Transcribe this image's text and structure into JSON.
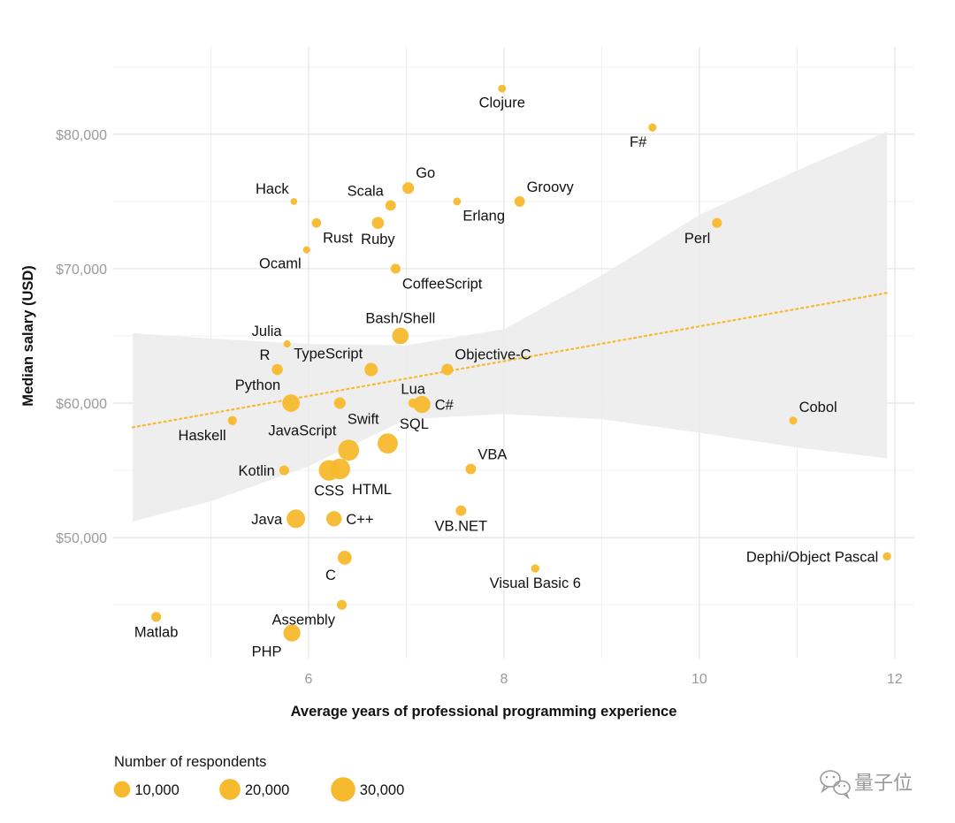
{
  "chart_data": {
    "type": "scatter",
    "title": "",
    "xlabel": "Average years of professional programming experience",
    "ylabel": "Median salary (USD)",
    "xlim": [
      4.0,
      12.2
    ],
    "ylim": [
      41000,
      86500
    ],
    "x_ticks": [
      {
        "value": 6,
        "label": "6"
      },
      {
        "value": 8,
        "label": "8"
      },
      {
        "value": 10,
        "label": "10"
      },
      {
        "value": 12,
        "label": "12"
      }
    ],
    "y_ticks": [
      {
        "value": 50000,
        "label": "$50,000"
      },
      {
        "value": 60000,
        "label": "$60,000"
      },
      {
        "value": 70000,
        "label": "$70,000"
      },
      {
        "value": 80000,
        "label": "$80,000"
      }
    ],
    "grid": true,
    "colors": {
      "point": "#f7b92d",
      "trend": "#f7b92d",
      "band": "#ebebeb",
      "grid": "#e4e4e4",
      "watermark": "#9a9a9a"
    },
    "trend_line": {
      "x": [
        4.2,
        11.92
      ],
      "y": [
        58200,
        68200
      ]
    },
    "confidence_band": {
      "upper": [
        [
          4.2,
          65200
        ],
        [
          5.0,
          64800
        ],
        [
          6.0,
          64400
        ],
        [
          7.0,
          64300
        ],
        [
          8.0,
          65500
        ],
        [
          9.0,
          69500
        ],
        [
          10.0,
          74000
        ],
        [
          11.0,
          77300
        ],
        [
          11.92,
          80200
        ]
      ],
      "lower": [
        [
          11.92,
          55900
        ],
        [
          11.0,
          56700
        ],
        [
          10.0,
          57800
        ],
        [
          9.0,
          58800
        ],
        [
          8.0,
          59200
        ],
        [
          7.0,
          58800
        ],
        [
          6.0,
          55300
        ],
        [
          5.0,
          52700
        ],
        [
          4.2,
          51200
        ]
      ]
    },
    "points": [
      {
        "name": "Clojure",
        "x": 7.98,
        "y": 83400,
        "respondents": 400,
        "label_pos": "below"
      },
      {
        "name": "F#",
        "x": 9.52,
        "y": 80500,
        "respondents": 500,
        "label_pos": "below-left"
      },
      {
        "name": "Go",
        "x": 7.02,
        "y": 76000,
        "respondents": 3000,
        "label_pos": "above-right"
      },
      {
        "name": "Hack",
        "x": 5.85,
        "y": 75000,
        "respondents": 100,
        "label_pos": "above-left"
      },
      {
        "name": "Scala",
        "x": 6.84,
        "y": 74700,
        "respondents": 2000,
        "label_pos": "above-left"
      },
      {
        "name": "Erlang",
        "x": 7.52,
        "y": 75000,
        "respondents": 400,
        "label_pos": "below-right"
      },
      {
        "name": "Groovy",
        "x": 8.16,
        "y": 75000,
        "respondents": 2000,
        "label_pos": "above-right"
      },
      {
        "name": "Rust",
        "x": 6.08,
        "y": 73400,
        "respondents": 1200,
        "label_pos": "below-right"
      },
      {
        "name": "Ruby",
        "x": 6.71,
        "y": 73400,
        "respondents": 3500,
        "label_pos": "below"
      },
      {
        "name": "Perl",
        "x": 10.18,
        "y": 73400,
        "respondents": 1500,
        "label_pos": "below-left"
      },
      {
        "name": "Ocaml",
        "x": 5.98,
        "y": 71400,
        "respondents": 200,
        "label_pos": "below-left"
      },
      {
        "name": "CoffeeScript",
        "x": 6.89,
        "y": 70000,
        "respondents": 1500,
        "label_pos": "below-right"
      },
      {
        "name": "Julia",
        "x": 5.78,
        "y": 64400,
        "respondents": 200,
        "label_pos": "above-left"
      },
      {
        "name": "Bash/Shell",
        "x": 6.94,
        "y": 65000,
        "respondents": 10000,
        "label_pos": "above"
      },
      {
        "name": "R",
        "x": 5.68,
        "y": 62500,
        "respondents": 2500,
        "label_pos": "above-left"
      },
      {
        "name": "TypeScript",
        "x": 6.64,
        "y": 62500,
        "respondents": 5000,
        "label_pos": "above-left"
      },
      {
        "name": "Objective-C",
        "x": 7.42,
        "y": 62500,
        "respondents": 3000,
        "label_pos": "above-right"
      },
      {
        "name": "Python",
        "x": 5.82,
        "y": 60000,
        "respondents": 12000,
        "label_pos": "above-left"
      },
      {
        "name": "Swift",
        "x": 6.32,
        "y": 60000,
        "respondents": 3000,
        "label_pos": "below-right"
      },
      {
        "name": "Lua",
        "x": 7.07,
        "y": 60000,
        "respondents": 1200,
        "label_pos": "above"
      },
      {
        "name": "C#",
        "x": 7.16,
        "y": 59900,
        "respondents": 11000,
        "label_pos": "right"
      },
      {
        "name": "Cobol",
        "x": 10.96,
        "y": 58700,
        "respondents": 500,
        "label_pos": "above-right"
      },
      {
        "name": "Haskell",
        "x": 5.22,
        "y": 58700,
        "respondents": 1000,
        "label_pos": "below-left"
      },
      {
        "name": "SQL",
        "x": 6.81,
        "y": 57000,
        "respondents": 18000,
        "label_pos": "above-right"
      },
      {
        "name": "JavaScript",
        "x": 6.41,
        "y": 56500,
        "respondents": 20000,
        "label_pos": "above-left"
      },
      {
        "name": "HTML",
        "x": 6.32,
        "y": 55100,
        "respondents": 19000,
        "label_pos": "below-right"
      },
      {
        "name": "CSS",
        "x": 6.21,
        "y": 55000,
        "respondents": 19000,
        "label_pos": "below"
      },
      {
        "name": "Kotlin",
        "x": 5.75,
        "y": 55000,
        "respondents": 1500,
        "label_pos": "left"
      },
      {
        "name": "VBA",
        "x": 7.66,
        "y": 55100,
        "respondents": 2000,
        "label_pos": "above-right"
      },
      {
        "name": "VB.NET",
        "x": 7.56,
        "y": 52000,
        "respondents": 2000,
        "label_pos": "below"
      },
      {
        "name": "Java",
        "x": 5.87,
        "y": 51400,
        "respondents": 14000,
        "label_pos": "left"
      },
      {
        "name": "C++",
        "x": 6.26,
        "y": 51400,
        "respondents": 8000,
        "label_pos": "right"
      },
      {
        "name": "C",
        "x": 6.37,
        "y": 48500,
        "respondents": 6000,
        "label_pos": "below-left"
      },
      {
        "name": "Visual Basic 6",
        "x": 8.32,
        "y": 47700,
        "respondents": 600,
        "label_pos": "below"
      },
      {
        "name": "Dephi/Object Pascal",
        "x": 11.92,
        "y": 48600,
        "respondents": 600,
        "label_pos": "left"
      },
      {
        "name": "Assembly",
        "x": 6.34,
        "y": 45000,
        "respondents": 1500,
        "label_pos": "below-left"
      },
      {
        "name": "Matlab",
        "x": 4.44,
        "y": 44100,
        "respondents": 1500,
        "label_pos": "below"
      },
      {
        "name": "PHP",
        "x": 5.83,
        "y": 42900,
        "respondents": 11000,
        "label_pos": "below-left"
      }
    ],
    "legend": {
      "title": "Number of respondents",
      "placement": "bottom-left",
      "items": [
        {
          "label": "10,000",
          "respondents": 10000
        },
        {
          "label": "20,000",
          "respondents": 20000
        },
        {
          "label": "30,000",
          "respondents": 30000
        }
      ]
    }
  },
  "watermark": {
    "text": "量子位",
    "icon": "wechat-icon"
  }
}
